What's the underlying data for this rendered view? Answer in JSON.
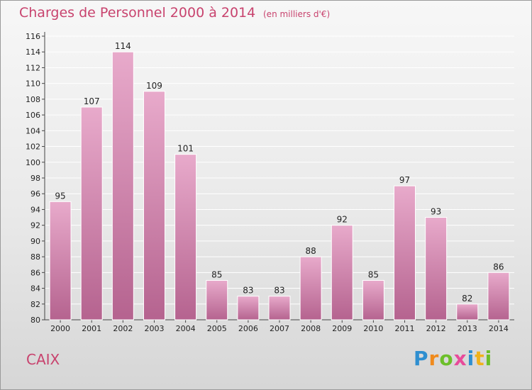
{
  "header": {
    "title": "Charges de Personnel 2000 à 2014",
    "subtitle": "(en milliers d'€)"
  },
  "place_name": "CAIX",
  "logo": {
    "letters": [
      {
        "char": "P",
        "color": "#2f8fd0"
      },
      {
        "char": "r",
        "color": "#f08a1c"
      },
      {
        "char": "o",
        "color": "#6cbf2a"
      },
      {
        "char": "x",
        "color": "#e84b9a"
      },
      {
        "char": "i",
        "color": "#2f8fd0"
      },
      {
        "char": "t",
        "color": "#f0b21c"
      },
      {
        "char": "i",
        "color": "#6cbf2a"
      }
    ]
  },
  "colors": {
    "bar_light": "#e8aacb",
    "bar_dark": "#b5638f",
    "grid": "#ffffff",
    "accent": "#c8436e"
  },
  "chart_data": {
    "type": "bar",
    "title": "Charges de Personnel 2000 à 2014",
    "subtitle": "(en milliers d'€)",
    "categories": [
      "2000",
      "2001",
      "2002",
      "2003",
      "2004",
      "2005",
      "2006",
      "2007",
      "2008",
      "2009",
      "2010",
      "2011",
      "2012",
      "2013",
      "2014"
    ],
    "values": [
      95,
      107,
      114,
      109,
      101,
      85,
      83,
      83,
      88,
      92,
      85,
      97,
      93,
      82,
      86
    ],
    "ylim": [
      80,
      116
    ],
    "yticks": [
      80,
      82,
      84,
      86,
      88,
      90,
      92,
      94,
      96,
      98,
      100,
      102,
      104,
      106,
      108,
      110,
      112,
      114,
      116
    ],
    "grid": true,
    "legend": "none"
  }
}
